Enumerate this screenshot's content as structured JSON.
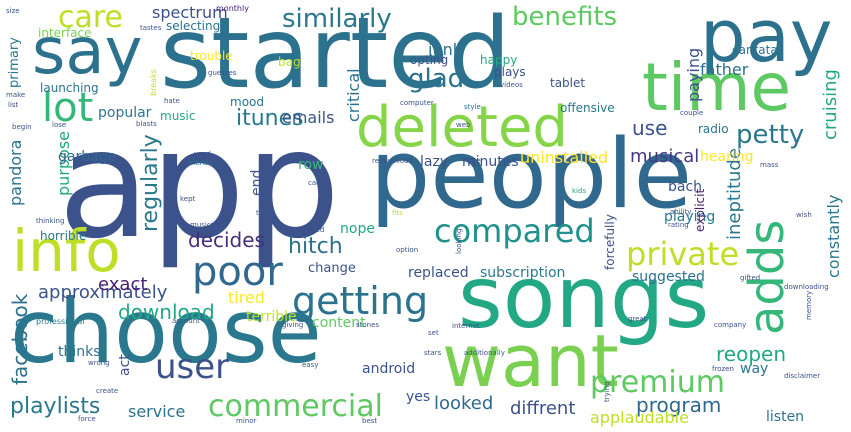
{
  "words": [
    {
      "text": "app",
      "color": "#3b528b"
    },
    {
      "text": "started",
      "color": "#2c728e"
    },
    {
      "text": "people",
      "color": "#31688e"
    },
    {
      "text": "choose",
      "color": "#2a788e"
    },
    {
      "text": "songs",
      "color": "#22a884"
    },
    {
      "text": "want",
      "color": "#7ad151"
    },
    {
      "text": "pay",
      "color": "#2c728e"
    },
    {
      "text": "say",
      "color": "#2c728e"
    },
    {
      "text": "time",
      "color": "#5ec962"
    },
    {
      "text": "deleted",
      "color": "#86d549"
    },
    {
      "text": "info",
      "color": "#bddf26"
    },
    {
      "text": "adds",
      "color": "#35b779"
    },
    {
      "text": "lot",
      "color": "#35b779"
    },
    {
      "text": "poor",
      "color": "#31688e"
    },
    {
      "text": "getting",
      "color": "#2c728e"
    },
    {
      "text": "compared",
      "color": "#21918c"
    },
    {
      "text": "private",
      "color": "#bddf26"
    },
    {
      "text": "user",
      "color": "#3b528b"
    },
    {
      "text": "commercial",
      "color": "#5ec962"
    },
    {
      "text": "premium",
      "color": "#5ec962"
    },
    {
      "text": "care",
      "color": "#bddf26"
    },
    {
      "text": "benefits",
      "color": "#5ec962"
    },
    {
      "text": "similarly",
      "color": "#2a788e"
    },
    {
      "text": "glad",
      "color": "#2c728e"
    },
    {
      "text": "petty",
      "color": "#2a788e"
    },
    {
      "text": "itunes",
      "color": "#2a788e"
    },
    {
      "text": "hitch",
      "color": "#2c728e"
    },
    {
      "text": "regularly",
      "color": "#2a788e"
    },
    {
      "text": "approximately",
      "color": "#3b528b"
    },
    {
      "text": "download",
      "color": "#22a884"
    },
    {
      "text": "playlists",
      "color": "#2a788e"
    },
    {
      "text": "program",
      "color": "#31688e"
    },
    {
      "text": "musical",
      "color": "#443983"
    },
    {
      "text": "reopen",
      "color": "#22a884"
    },
    {
      "text": "decides",
      "color": "#472d7b"
    },
    {
      "text": "offline",
      "color": "#2c728e"
    },
    {
      "text": "facebook",
      "color": "#2c728e"
    },
    {
      "text": "spectrum",
      "color": "#3b528b"
    },
    {
      "text": "junk",
      "color": "#2c728e"
    },
    {
      "text": "cruising",
      "color": "#22a884"
    },
    {
      "text": "emails",
      "color": "#3b528b"
    },
    {
      "text": "ineptitude",
      "color": "#2a788e"
    },
    {
      "text": "constantly",
      "color": "#2a788e"
    },
    {
      "text": "diffrent",
      "color": "#3b528b"
    },
    {
      "text": "applaudable",
      "color": "#bddf26"
    },
    {
      "text": "service",
      "color": "#2c728e"
    },
    {
      "text": "looked",
      "color": "#31688e"
    },
    {
      "text": "exact",
      "color": "#482173"
    },
    {
      "text": "plus",
      "color": "#3b528b"
    },
    {
      "text": "tired",
      "color": "#fde725"
    },
    {
      "text": "uninstalled",
      "color": "#fde725"
    },
    {
      "text": "paying",
      "color": "#3b528b"
    },
    {
      "text": "father",
      "color": "#2c728e"
    },
    {
      "text": "critical",
      "color": "#2c728e"
    },
    {
      "text": "use",
      "color": "#3b528b"
    },
    {
      "text": "popular",
      "color": "#2a788e"
    },
    {
      "text": "purpose",
      "color": "#22a884"
    },
    {
      "text": "pandora",
      "color": "#2c728e"
    },
    {
      "text": "garbage",
      "color": "#31688e"
    },
    {
      "text": "lazy",
      "color": "#3b528b"
    },
    {
      "text": "minutes",
      "color": "#3b528b"
    },
    {
      "text": "bach",
      "color": "#3b528b"
    },
    {
      "text": "hearing",
      "color": "#fde725"
    },
    {
      "text": "musical",
      "color": "#3b528b"
    },
    {
      "text": "end",
      "color": "#3b528b"
    },
    {
      "text": "nope",
      "color": "#22a884"
    },
    {
      "text": "playing",
      "color": "#2a788e"
    },
    {
      "text": "row",
      "color": "#35b779"
    },
    {
      "text": "change",
      "color": "#3b528b"
    },
    {
      "text": "replaced",
      "color": "#3b528b"
    },
    {
      "text": "subscription",
      "color": "#2a788e"
    },
    {
      "text": "suggested",
      "color": "#2c728e"
    },
    {
      "text": "content",
      "color": "#5ec962"
    },
    {
      "text": "terrible",
      "color": "#bddf26"
    },
    {
      "text": "thinks",
      "color": "#2c728e"
    },
    {
      "text": "act",
      "color": "#3b528b"
    },
    {
      "text": "android",
      "color": "#3b528b"
    },
    {
      "text": "yes",
      "color": "#3b528b"
    },
    {
      "text": "way",
      "color": "#2a788e"
    },
    {
      "text": "listen",
      "color": "#2c728e"
    },
    {
      "text": "interface",
      "color": "#7ad151"
    },
    {
      "text": "primary",
      "color": "#2a788e"
    },
    {
      "text": "launching",
      "color": "#2c728e"
    },
    {
      "text": "trouble",
      "color": "#fde725"
    },
    {
      "text": "bag",
      "color": "#bddf26"
    },
    {
      "text": "opting",
      "color": "#3b528b"
    },
    {
      "text": "happy",
      "color": "#22a884"
    },
    {
      "text": "plays",
      "color": "#3b528b"
    },
    {
      "text": "tablet",
      "color": "#3b528b"
    },
    {
      "text": "cantata",
      "color": "#2c728e"
    },
    {
      "text": "offensive",
      "color": "#2a788e"
    },
    {
      "text": "radio",
      "color": "#2c728e"
    },
    {
      "text": "mood",
      "color": "#2c728e"
    },
    {
      "text": "music",
      "color": "#22a884"
    },
    {
      "text": "selecting",
      "color": "#2c728e"
    },
    {
      "text": "explicit",
      "color": "#482173"
    },
    {
      "text": "forcefully",
      "color": "#3b528b"
    },
    {
      "text": "horrible",
      "color": "#2a788e"
    },
    {
      "text": "monthly",
      "color": "#482173"
    },
    {
      "text": "tastes",
      "color": "#3b528b"
    },
    {
      "text": "size",
      "color": "#3b528b"
    },
    {
      "text": "breaks",
      "color": "#bddf26"
    },
    {
      "text": "guesses",
      "color": "#3b528b"
    },
    {
      "text": "make",
      "color": "#3b528b"
    },
    {
      "text": "list",
      "color": "#3b528b"
    },
    {
      "text": "begin",
      "color": "#3b528b"
    },
    {
      "text": "hate",
      "color": "#3b528b"
    },
    {
      "text": "blasts",
      "color": "#3b528b"
    },
    {
      "text": "lose",
      "color": "#3b528b"
    },
    {
      "text": "computer",
      "color": "#3b528b"
    },
    {
      "text": "style",
      "color": "#2c728e"
    },
    {
      "text": "videos",
      "color": "#3b528b"
    },
    {
      "text": "web",
      "color": "#3b528b"
    },
    {
      "text": "couple",
      "color": "#3b528b"
    },
    {
      "text": "redownload",
      "color": "#3b528b"
    },
    {
      "text": "site",
      "color": "#3b528b"
    },
    {
      "text": "friendly",
      "color": "#2c728e"
    },
    {
      "text": "used",
      "color": "#3b528b"
    },
    {
      "text": "cache",
      "color": "#3b528b"
    },
    {
      "text": "kids",
      "color": "#22a884"
    },
    {
      "text": "ability",
      "color": "#3b528b"
    },
    {
      "text": "mass",
      "color": "#3b528b"
    },
    {
      "text": "kept",
      "color": "#3b528b"
    },
    {
      "text": "musician",
      "color": "#3b528b"
    },
    {
      "text": "tick",
      "color": "#3b528b"
    },
    {
      "text": "hopped",
      "color": "#3b528b"
    },
    {
      "text": "thinking",
      "color": "#3b528b"
    },
    {
      "text": "looking",
      "color": "#3b528b"
    },
    {
      "text": "fits",
      "color": "#bddf26"
    },
    {
      "text": "rating",
      "color": "#3b528b"
    },
    {
      "text": "wish",
      "color": "#3b528b"
    },
    {
      "text": "complain",
      "color": "#3b528b"
    },
    {
      "text": "option",
      "color": "#3b528b"
    },
    {
      "text": "gifted",
      "color": "#3b528b"
    },
    {
      "text": "downloading",
      "color": "#3b528b"
    },
    {
      "text": "memory",
      "color": "#3b528b"
    },
    {
      "text": "professional",
      "color": "#2a788e"
    },
    {
      "text": "account",
      "color": "#3b528b"
    },
    {
      "text": "giving",
      "color": "#3b528b"
    },
    {
      "text": "stones",
      "color": "#3b528b"
    },
    {
      "text": "internet",
      "color": "#3b528b"
    },
    {
      "text": "great",
      "color": "#3b528b"
    },
    {
      "text": "company",
      "color": "#3b528b"
    },
    {
      "text": "set",
      "color": "#3b528b"
    },
    {
      "text": "wrong",
      "color": "#3b528b"
    },
    {
      "text": "easy",
      "color": "#3b528b"
    },
    {
      "text": "stars",
      "color": "#3b528b"
    },
    {
      "text": "additionally",
      "color": "#3b528b"
    },
    {
      "text": "frozen",
      "color": "#3b528b"
    },
    {
      "text": "disclaimer",
      "color": "#3b528b"
    },
    {
      "text": "trying",
      "color": "#3b528b"
    },
    {
      "text": "create",
      "color": "#3b528b"
    },
    {
      "text": "force",
      "color": "#3b528b"
    },
    {
      "text": "minor",
      "color": "#3b528b"
    },
    {
      "text": "best",
      "color": "#3b528b"
    }
  ]
}
